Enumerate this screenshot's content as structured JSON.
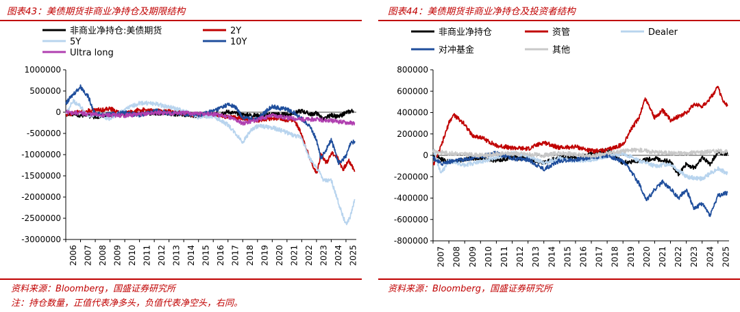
{
  "left": {
    "figure_title": "图表43：美债期货非商业净持仓及期限结构",
    "source": "资料来源：Bloomberg，国盛证券研究所",
    "note": "注：持仓数量，正值代表净多头，负值代表净空头，右同。"
  },
  "right": {
    "figure_title": "图表44：美债期货非商业净持仓及投资者结构",
    "source": "资料来源：Bloomberg，国盛证券研究所"
  },
  "chart_data": [
    {
      "type": "line",
      "title": "",
      "xlabel": "",
      "ylabel": "",
      "xlim": [
        2006,
        2025.7
      ],
      "ylim": [
        -3000000,
        1000000
      ],
      "y_ticks": [
        1000000,
        500000,
        0,
        -500000,
        -1000000,
        -1500000,
        -2000000,
        -2500000,
        -3000000
      ],
      "x_ticks": [
        "2006",
        "2007",
        "2008",
        "2009",
        "2010",
        "2011",
        "2012",
        "2013",
        "2014",
        "2015",
        "2016",
        "2017",
        "2018",
        "2019",
        "2020",
        "2021",
        "2022",
        "2023",
        "2024",
        "2025"
      ],
      "grid": false,
      "legend": "top",
      "series": [
        {
          "name": "非商业净持仓:美债期货",
          "color": "#000000",
          "x": [
            2006,
            2007,
            2008,
            2009,
            2010,
            2011,
            2012,
            2013,
            2014,
            2015,
            2016,
            2017,
            2018,
            2019,
            2020,
            2021,
            2022,
            2022.6,
            2023,
            2023.5,
            2024,
            2024.5,
            2025,
            2025.5
          ],
          "y": [
            -20000,
            -70000,
            -110000,
            -60000,
            -40000,
            -20000,
            -20000,
            -30000,
            -60000,
            -80000,
            -50000,
            10000,
            -60000,
            -80000,
            -40000,
            -60000,
            30000,
            -50000,
            -20000,
            -170000,
            -70000,
            -110000,
            -10000,
            40000
          ]
        },
        {
          "name": "2Y",
          "color": "#c00000",
          "x": [
            2006,
            2007,
            2008,
            2009,
            2010,
            2011,
            2012,
            2013,
            2014,
            2015,
            2016,
            2017,
            2018,
            2019,
            2020,
            2021,
            2021.5,
            2022,
            2022.5,
            2023,
            2023.3,
            2023.7,
            2024,
            2024.4,
            2024.8,
            2025.2,
            2025.6
          ],
          "y": [
            -60000,
            30000,
            50000,
            80000,
            -40000,
            60000,
            30000,
            20000,
            -30000,
            -80000,
            -60000,
            -110000,
            -150000,
            -190000,
            -140000,
            -180000,
            -190000,
            -520000,
            -1050000,
            -1450000,
            -1000000,
            -1200000,
            -950000,
            -1050000,
            -1350000,
            -1150000,
            -1380000
          ]
        },
        {
          "name": "5Y",
          "color": "#b8d4ee",
          "x": [
            2006,
            2006.5,
            2007,
            2007.5,
            2008,
            2009,
            2010,
            2011,
            2012,
            2013,
            2014,
            2015,
            2016,
            2017,
            2018,
            2018.5,
            2019,
            2020,
            2021,
            2021.5,
            2022,
            2022.5,
            2023,
            2023.5,
            2024,
            2024.5,
            2025,
            2025.3,
            2025.6
          ],
          "y": [
            -30000,
            270000,
            130000,
            -80000,
            -50000,
            -150000,
            60000,
            220000,
            200000,
            120000,
            30000,
            -120000,
            -90000,
            -300000,
            -700000,
            -450000,
            -330000,
            -360000,
            -480000,
            -560000,
            -600000,
            -1080000,
            -1300000,
            -1620000,
            -1600000,
            -2150000,
            -2650000,
            -2450000,
            -2050000
          ]
        },
        {
          "name": "10Y",
          "color": "#1f4e9c",
          "x": [
            2006,
            2006.5,
            2007,
            2007.5,
            2008,
            2009,
            2010,
            2011,
            2012,
            2013,
            2014,
            2015,
            2016,
            2017,
            2017.5,
            2018,
            2019,
            2020,
            2020.5,
            2021,
            2021.5,
            2022,
            2022.5,
            2023,
            2023.3,
            2023.7,
            2024,
            2024.5,
            2025,
            2025.3,
            2025.6
          ],
          "y": [
            200000,
            420000,
            600000,
            380000,
            -40000,
            -50000,
            -10000,
            -80000,
            40000,
            -20000,
            -40000,
            -70000,
            30000,
            180000,
            120000,
            -130000,
            -160000,
            150000,
            90000,
            80000,
            -20000,
            -160000,
            -300000,
            -640000,
            -1100000,
            -850000,
            -640000,
            -1200000,
            -1050000,
            -750000,
            -680000
          ]
        },
        {
          "name": "Ultra long",
          "color": "#b040b0",
          "x": [
            2006,
            2008,
            2010,
            2012,
            2014,
            2016,
            2017,
            2018,
            2019,
            2020,
            2021,
            2022,
            2023,
            2024,
            2025,
            2025.6
          ],
          "y": [
            0,
            -60000,
            -80000,
            -20000,
            -20000,
            -50000,
            -100000,
            -260000,
            -180000,
            -70000,
            -130000,
            -170000,
            -170000,
            -200000,
            -240000,
            -260000
          ]
        }
      ]
    },
    {
      "type": "line",
      "title": "",
      "xlabel": "",
      "ylabel": "",
      "xlim": [
        2007,
        2025.7
      ],
      "ylim": [
        -800000,
        800000
      ],
      "y_ticks": [
        800000,
        600000,
        400000,
        200000,
        0,
        -200000,
        -400000,
        -600000,
        -800000
      ],
      "x_ticks": [
        "2007",
        "2008",
        "2009",
        "2010",
        "2011",
        "2012",
        "2013",
        "2014",
        "2015",
        "2016",
        "2017",
        "2018",
        "2019",
        "2020",
        "2021",
        "2022",
        "2023",
        "2024",
        "2025"
      ],
      "grid": false,
      "legend": "top",
      "series": [
        {
          "name": "非商业净持仓",
          "color": "#000000",
          "x": [
            2007,
            2008,
            2009,
            2010,
            2011,
            2012,
            2013,
            2014,
            2015,
            2016,
            2017,
            2018,
            2019,
            2020,
            2021,
            2022,
            2022.5,
            2023,
            2023.5,
            2024,
            2024.5,
            2025,
            2025.6
          ],
          "y": [
            -10000,
            -60000,
            -40000,
            -20000,
            -50000,
            -20000,
            -30000,
            -70000,
            -20000,
            -30000,
            10000,
            50000,
            -70000,
            -50000,
            -30000,
            -60000,
            -180000,
            -80000,
            -120000,
            -20000,
            -80000,
            30000,
            10000
          ]
        },
        {
          "name": "资管",
          "color": "#c00000",
          "x": [
            2007,
            2007.5,
            2008,
            2008.3,
            2008.7,
            2009,
            2009.5,
            2010,
            2011,
            2012,
            2013,
            2014,
            2015,
            2016,
            2017,
            2018,
            2019,
            2019.5,
            2020,
            2020.4,
            2020.7,
            2021,
            2021.5,
            2022,
            2023,
            2023.5,
            2024,
            2024.5,
            2025,
            2025.3,
            2025.6
          ],
          "y": [
            -100000,
            80000,
            300000,
            380000,
            330000,
            290000,
            180000,
            170000,
            90000,
            70000,
            60000,
            120000,
            70000,
            80000,
            40000,
            50000,
            100000,
            240000,
            350000,
            530000,
            450000,
            350000,
            420000,
            330000,
            400000,
            480000,
            460000,
            530000,
            640000,
            510000,
            460000
          ]
        },
        {
          "name": "Dealer",
          "color": "#b8d4ee",
          "x": [
            2007,
            2007.5,
            2008,
            2009,
            2010,
            2011,
            2012,
            2013,
            2014,
            2015,
            2016,
            2017,
            2018,
            2019,
            2020,
            2021,
            2022,
            2023,
            2024,
            2025,
            2025.6
          ],
          "y": [
            60000,
            -170000,
            -50000,
            -90000,
            -60000,
            -20000,
            20000,
            -10000,
            -70000,
            -30000,
            -50000,
            -40000,
            -10000,
            20000,
            -50000,
            -100000,
            -80000,
            -200000,
            -220000,
            -120000,
            -170000
          ]
        },
        {
          "name": "对冲基金",
          "color": "#1f4e9c",
          "x": [
            2007,
            2007.5,
            2008,
            2009,
            2010,
            2011,
            2012,
            2013,
            2014,
            2015,
            2016,
            2017,
            2018,
            2019,
            2019.5,
            2020,
            2020.5,
            2021,
            2021.5,
            2022,
            2022.5,
            2023,
            2023.5,
            2024,
            2024.5,
            2025,
            2025.6
          ],
          "y": [
            -20000,
            -80000,
            -60000,
            -40000,
            -10000,
            20000,
            -30000,
            -40000,
            -130000,
            -50000,
            -40000,
            -20000,
            0,
            -60000,
            -150000,
            -260000,
            -420000,
            -320000,
            -250000,
            -310000,
            -400000,
            -320000,
            -500000,
            -450000,
            -560000,
            -380000,
            -350000
          ]
        },
        {
          "name": "其他",
          "color": "#c8c8c8",
          "x": [
            2007,
            2008,
            2009,
            2010,
            2011,
            2012,
            2013,
            2014,
            2015,
            2016,
            2017,
            2018,
            2019,
            2020,
            2021,
            2022,
            2023,
            2024,
            2025,
            2025.6
          ],
          "y": [
            40000,
            20000,
            10000,
            0,
            10000,
            20000,
            10000,
            0,
            20000,
            10000,
            -10000,
            20000,
            40000,
            50000,
            30000,
            20000,
            20000,
            30000,
            40000,
            30000
          ]
        }
      ]
    }
  ]
}
